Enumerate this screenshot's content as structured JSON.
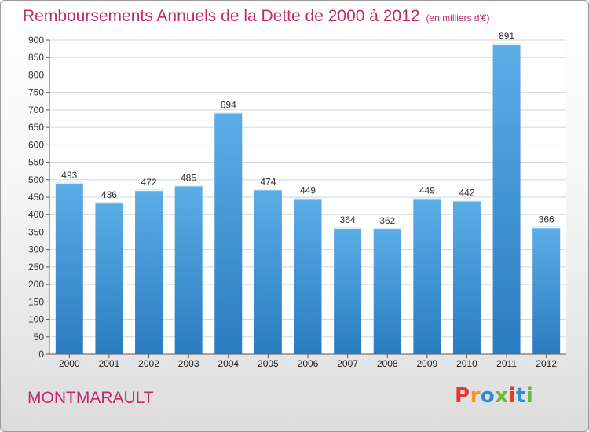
{
  "header": {
    "title": "Remboursements Annuels de la Dette de 2000 à 2012",
    "unit_note": "(en milliers d'€)"
  },
  "footer": {
    "commune": "MONTMARAULT",
    "brand": "Proxiti"
  },
  "colors": {
    "accent": "#c22a6a",
    "bar_top": "#5baee6",
    "bar_bottom": "#2a7cc0",
    "logo_letters": [
      "#e8382e",
      "#f39a1e",
      "#2b8ed8",
      "#6cb63a",
      "#e8382e",
      "#2b8ed8",
      "#6cb63a"
    ]
  },
  "chart_data": {
    "type": "bar",
    "categories": [
      "2000",
      "2001",
      "2002",
      "2003",
      "2004",
      "2005",
      "2006",
      "2007",
      "2008",
      "2009",
      "2010",
      "2011",
      "2012"
    ],
    "values": [
      493,
      436,
      472,
      485,
      694,
      474,
      449,
      364,
      362,
      449,
      442,
      891,
      366
    ],
    "ylim": [
      0,
      900
    ],
    "yticks": [
      0,
      50,
      100,
      150,
      200,
      250,
      300,
      350,
      400,
      450,
      500,
      550,
      600,
      650,
      700,
      750,
      800,
      850,
      900
    ],
    "grid": true
  }
}
